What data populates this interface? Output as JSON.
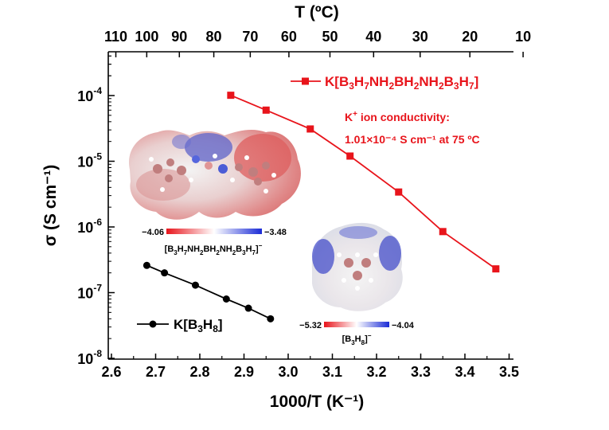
{
  "chart_data": {
    "type": "scatter",
    "x_axis": {
      "label": "1000/T (K⁻¹)",
      "range": [
        2.6,
        3.55
      ],
      "ticks": [
        "2.6",
        "2.7",
        "2.8",
        "2.9",
        "3.0",
        "3.1",
        "3.2",
        "3.3",
        "3.4",
        "3.5"
      ]
    },
    "top_axis": {
      "label": "T (ºC)",
      "ticks_celsius": [
        110,
        100,
        90,
        80,
        70,
        60,
        50,
        40,
        30,
        20,
        10
      ]
    },
    "y_axis": {
      "label": "σ (S cm⁻¹)",
      "scale": "log",
      "range": [
        1e-08,
        0.0005
      ],
      "tick_exponents": [
        -4,
        -5,
        -6,
        -7,
        -8
      ]
    },
    "series": [
      {
        "name": "K[B3H7NH2BH2NH2B3H7]",
        "color": "#e8141b",
        "marker": "square",
        "x": [
          2.87,
          2.95,
          3.05,
          3.14,
          3.25,
          3.35,
          3.47
        ],
        "y": [
          0.000101,
          6e-05,
          3.1e-05,
          1.2e-05,
          3.4e-06,
          8.5e-07,
          2.3e-07
        ]
      },
      {
        "name": "K[B3H8]",
        "color": "#000000",
        "marker": "circle",
        "x": [
          2.68,
          2.72,
          2.79,
          2.86,
          2.91,
          2.96
        ],
        "y": [
          2.6e-07,
          2e-07,
          1.3e-07,
          8e-08,
          5.8e-08,
          4e-08
        ]
      }
    ],
    "legend": {
      "red": {
        "prefix": "K[B",
        "parts": [
          [
            "3",
            "sub"
          ],
          [
            "H",
            ""
          ],
          [
            "7",
            "sub"
          ],
          [
            "NH",
            ""
          ],
          [
            "2",
            "sub"
          ],
          [
            "BH",
            ""
          ],
          [
            "2",
            "sub"
          ],
          [
            "NH",
            ""
          ],
          [
            "2",
            "sub"
          ],
          [
            "B",
            ""
          ],
          [
            "3",
            "sub"
          ],
          [
            "H",
            ""
          ],
          [
            "7",
            "sub"
          ],
          [
            "]",
            ""
          ]
        ]
      },
      "black": {
        "prefix": "K[B",
        "parts": [
          [
            "3",
            "sub"
          ],
          [
            "H",
            ""
          ],
          [
            "8",
            "sub"
          ],
          [
            "]",
            ""
          ]
        ]
      }
    },
    "annotation": {
      "line1_pre": "K",
      "line1_sup": "+",
      "line1_post": " ion conductivity:",
      "line2": "1.01×10⁻⁴ S cm⁻¹ at 75 ºC"
    },
    "insets": [
      {
        "name": "large-anion-esp-map",
        "colorbar_min": "−4.06",
        "colorbar_max": "−3.48",
        "label_parts": [
          [
            "[B",
            ""
          ],
          [
            "3",
            "sub"
          ],
          [
            "H",
            ""
          ],
          [
            "7",
            "sub"
          ],
          [
            "NH",
            ""
          ],
          [
            "2",
            "sub"
          ],
          [
            "BH",
            ""
          ],
          [
            "2",
            "sub"
          ],
          [
            "NH",
            ""
          ],
          [
            "2",
            "sub"
          ],
          [
            "B",
            ""
          ],
          [
            "3",
            "sub"
          ],
          [
            "H",
            ""
          ],
          [
            "7",
            "sub"
          ],
          [
            "]",
            ""
          ],
          [
            "−",
            "sup"
          ]
        ]
      },
      {
        "name": "b3h8-anion-esp-map",
        "colorbar_min": "−5.32",
        "colorbar_max": "−4.04",
        "label_parts": [
          [
            "[B",
            ""
          ],
          [
            "3",
            "sub"
          ],
          [
            "H",
            ""
          ],
          [
            "8",
            "sub"
          ],
          [
            "]",
            ""
          ],
          [
            "−",
            "sup"
          ]
        ]
      }
    ]
  }
}
